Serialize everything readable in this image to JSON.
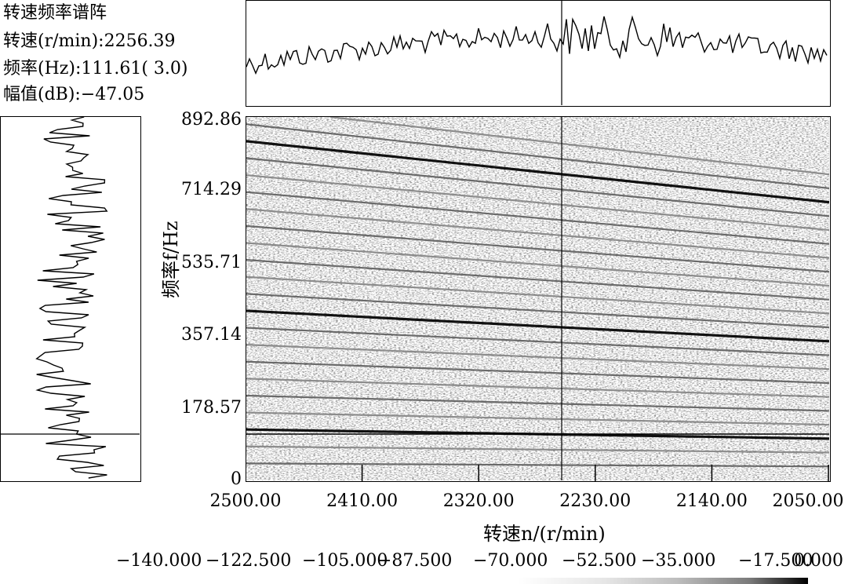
{
  "info": {
    "title": "转速频率谱阵",
    "speed_line": "转速(r/min):2256.39",
    "freq_line": "频率(Hz):111.61( 3.0)",
    "amp_line": "幅值(dB):−47.05"
  },
  "chart_data": {
    "type": "heatmap",
    "title": "转速频率谱阵",
    "xlabel": "转速n/(r/min)",
    "ylabel": "频率f/Hz",
    "x_range": [
      2500,
      2050
    ],
    "y_range": [
      0,
      892.86
    ],
    "x_ticks": [
      "2500.00",
      "2410.00",
      "2320.00",
      "2230.00",
      "2140.00",
      "2050.00"
    ],
    "x_tick_values": [
      2500,
      2410,
      2320,
      2230,
      2140,
      2050
    ],
    "y_ticks": [
      "0",
      "178.57",
      "357.14",
      "535.71",
      "714.29",
      "892.86"
    ],
    "y_tick_values": [
      0,
      178.57,
      357.14,
      535.71,
      714.29,
      892.86
    ],
    "cursor": {
      "speed": 2256.39,
      "frequency": 111.61,
      "order": 3.0,
      "amplitude_db": -47.05
    },
    "orders": [
      1,
      2,
      3,
      4,
      5,
      6,
      7,
      8,
      9,
      10,
      11,
      12,
      13,
      14,
      15,
      16,
      17,
      18,
      19,
      20,
      21,
      22
    ],
    "strong_orders": [
      3,
      10,
      20
    ],
    "colorbar": {
      "labels": [
        "−140.000",
        "−122.500",
        "−105.000",
        "−87.500",
        "−70.000",
        "−52.500",
        "−35.000",
        "−17.500",
        "0.000"
      ],
      "min": -140,
      "max": 0
    },
    "grid": false
  }
}
